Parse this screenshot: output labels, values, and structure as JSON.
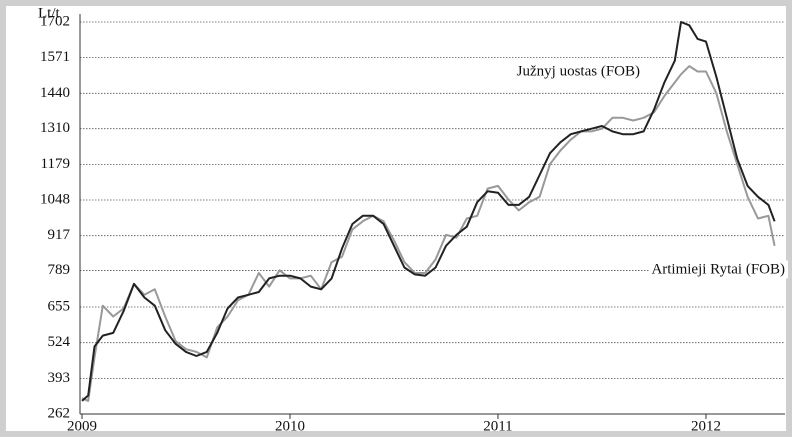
{
  "chart_data": {
    "type": "line",
    "y_label": "Lt/t",
    "annotations": [
      "Južnyj uostas (FOB)",
      "Artimieji Rytai (FOB)"
    ],
    "x": [
      2009.0,
      2009.03,
      2009.06,
      2009.1,
      2009.15,
      2009.2,
      2009.25,
      2009.3,
      2009.35,
      2009.4,
      2009.45,
      2009.5,
      2009.55,
      2009.6,
      2009.65,
      2009.7,
      2009.75,
      2009.8,
      2009.85,
      2009.9,
      2009.95,
      2010.0,
      2010.05,
      2010.1,
      2010.15,
      2010.2,
      2010.25,
      2010.3,
      2010.35,
      2010.4,
      2010.45,
      2010.5,
      2010.55,
      2010.6,
      2010.65,
      2010.7,
      2010.75,
      2010.8,
      2010.85,
      2010.9,
      2010.95,
      2011.0,
      2011.05,
      2011.1,
      2011.15,
      2011.2,
      2011.25,
      2011.3,
      2011.35,
      2011.4,
      2011.45,
      2011.5,
      2011.55,
      2011.6,
      2011.65,
      2011.7,
      2011.75,
      2011.8,
      2011.85,
      2011.88,
      2011.92,
      2011.96,
      2012.0,
      2012.05,
      2012.1,
      2012.15,
      2012.2,
      2012.25,
      2012.3,
      2012.33
    ],
    "series": [
      {
        "name": "Južnyj uostas (FOB)",
        "color": "#222222",
        "values": [
          310,
          330,
          510,
          550,
          560,
          640,
          740,
          690,
          660,
          570,
          520,
          490,
          475,
          490,
          560,
          650,
          690,
          700,
          710,
          760,
          770,
          770,
          760,
          730,
          720,
          760,
          870,
          960,
          990,
          990,
          960,
          880,
          800,
          775,
          770,
          800,
          880,
          920,
          950,
          1040,
          1080,
          1075,
          1030,
          1030,
          1060,
          1140,
          1220,
          1260,
          1290,
          1300,
          1310,
          1320,
          1300,
          1290,
          1290,
          1300,
          1380,
          1480,
          1560,
          1702,
          1690,
          1640,
          1630,
          1500,
          1350,
          1200,
          1100,
          1060,
          1030,
          970
        ]
      },
      {
        "name": "Artimieji Rytai (FOB)",
        "color": "#999999",
        "values": [
          320,
          310,
          470,
          660,
          620,
          650,
          740,
          700,
          720,
          620,
          530,
          500,
          490,
          470,
          580,
          620,
          680,
          700,
          780,
          730,
          790,
          760,
          760,
          770,
          720,
          820,
          840,
          940,
          970,
          990,
          970,
          900,
          820,
          780,
          780,
          830,
          920,
          910,
          980,
          990,
          1090,
          1100,
          1050,
          1010,
          1040,
          1060,
          1180,
          1230,
          1270,
          1300,
          1300,
          1310,
          1350,
          1350,
          1340,
          1350,
          1370,
          1430,
          1480,
          1510,
          1540,
          1520,
          1520,
          1440,
          1300,
          1180,
          1060,
          980,
          990,
          880
        ]
      }
    ],
    "xlim": [
      2009,
      2012.38
    ],
    "xticks": [
      2009,
      2010,
      2011,
      2012
    ],
    "ylim": [
      262,
      1702
    ],
    "yticks": [
      262,
      393,
      524,
      655,
      789,
      917,
      1048,
      1179,
      1310,
      1440,
      1571,
      1702
    ],
    "grid": true
  }
}
